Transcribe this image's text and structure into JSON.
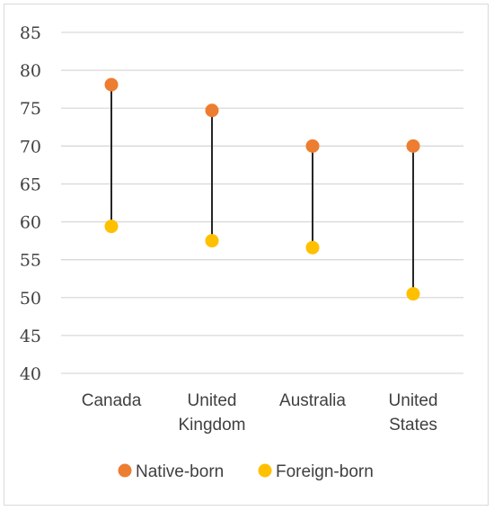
{
  "chart_data": {
    "type": "dumbbell",
    "title": "",
    "xlabel": "",
    "ylabel": "",
    "ylim": [
      40,
      85
    ],
    "yticks": [
      40,
      45,
      50,
      55,
      60,
      65,
      70,
      75,
      80,
      85
    ],
    "grid": true,
    "legend_position": "bottom",
    "categories": [
      [
        "Canada"
      ],
      [
        "United",
        "Kingdom"
      ],
      [
        "Australia"
      ],
      [
        "United",
        "States"
      ]
    ],
    "series": [
      {
        "name": "Native-born",
        "color": "#ED7D31",
        "values": [
          78.1,
          74.7,
          70.0,
          70.0
        ]
      },
      {
        "name": "Foreign-born",
        "color": "#FFC000",
        "values": [
          59.4,
          57.5,
          56.6,
          50.5
        ]
      }
    ],
    "connector_color": "#262626",
    "grid_color": "#d9d9d9"
  }
}
